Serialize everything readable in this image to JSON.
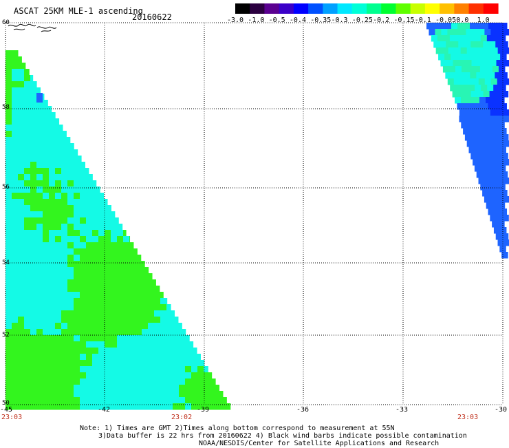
{
  "header": {
    "title": "ASCAT 25KM MLE-1 ascending",
    "date": "20160622"
  },
  "colorbar": {
    "labels": [
      "-3.0",
      "-1.0",
      "-0.5",
      "-0.4",
      "-0.35",
      "-0.3",
      "-0.25",
      "-0.2",
      "-0.15",
      "-0.1",
      "-0.05",
      "0.0",
      "1.0"
    ],
    "colors": [
      "#000000",
      "#2b0040",
      "#5a0090",
      "#3a00c8",
      "#0000ff",
      "#0050ff",
      "#00a0ff",
      "#00e8ff",
      "#00ffd8",
      "#00ff90",
      "#00ff30",
      "#60ff00",
      "#c8ff00",
      "#ffff00",
      "#ffc000",
      "#ff8000",
      "#ff3000",
      "#ff0000"
    ]
  },
  "map": {
    "lon_range": [
      -45,
      -30
    ],
    "lat_range": [
      50,
      60
    ],
    "lon_ticks": [
      "-45",
      "-42",
      "-39",
      "-36",
      "-33",
      "-30"
    ],
    "lat_ticks": [
      "60",
      "58",
      "56",
      "54",
      "52",
      "50"
    ],
    "times": [
      "23:03",
      "23:02",
      "23:03"
    ],
    "swath_colors": {
      "green": "#33f51e",
      "cyan": "#14fae6",
      "blue": "#1e64ff",
      "deep_blue": "#0a32ff",
      "mint": "#28f5b4"
    }
  },
  "footer": {
    "line1": "Note: 1) Times are GMT 2)Times along bottom correspond to measurement at 55N",
    "line2": "3)Data buffer is 22 hrs from 20160622 4) Black wind barbs indicate possible contamination",
    "line3": "NOAA/NESDIS/Center for Satellite Applications and Research"
  }
}
